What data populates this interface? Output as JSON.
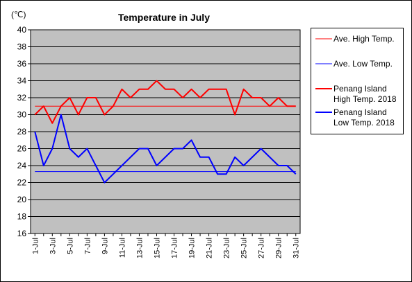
{
  "chart_data": {
    "type": "line",
    "title": "Temperature in July",
    "unit_label": "(℃)",
    "ylim": [
      16,
      40
    ],
    "y_ticks": [
      16,
      18,
      20,
      22,
      24,
      26,
      28,
      30,
      32,
      34,
      36,
      38,
      40
    ],
    "x_days": [
      1,
      2,
      3,
      4,
      5,
      6,
      7,
      8,
      9,
      10,
      11,
      12,
      13,
      14,
      15,
      16,
      17,
      18,
      19,
      20,
      21,
      22,
      23,
      24,
      25,
      26,
      27,
      28,
      29,
      30,
      31
    ],
    "x_tick_labels": [
      "1-Jul",
      "3-Jul",
      "5-Jul",
      "7-Jul",
      "9-Jul",
      "11-Jul",
      "13-Jul",
      "15-Jul",
      "17-Jul",
      "19-Jul",
      "21-Jul",
      "23-Jul",
      "25-Jul",
      "27-Jul",
      "29-Jul",
      "31-Jul"
    ],
    "grid": true,
    "legend_position": "right",
    "series": [
      {
        "name": "Ave. High Temp.",
        "kind": "constant",
        "value": 31.0,
        "color": "#ff0000",
        "weight": "thin"
      },
      {
        "name": "Ave. Low Temp.",
        "kind": "constant",
        "value": 23.3,
        "color": "#0000ff",
        "weight": "thin"
      },
      {
        "name": "Penang Island High Temp. 2018",
        "legend_lines": [
          "Penang Island",
          "High Temp. 2018"
        ],
        "kind": "daily",
        "color": "#ff0000",
        "weight": "bold",
        "values": [
          30,
          31,
          29,
          31,
          32,
          30,
          32,
          32,
          30,
          31,
          33,
          32,
          33,
          33,
          34,
          33,
          33,
          32,
          33,
          32,
          33,
          33,
          33,
          30,
          33,
          32,
          32,
          31,
          32,
          31,
          31
        ]
      },
      {
        "name": "Penang Island Low Temp. 2018",
        "legend_lines": [
          "Penang Island",
          "Low Temp. 2018"
        ],
        "kind": "daily",
        "color": "#0000ff",
        "weight": "bold",
        "values": [
          28,
          24,
          26,
          30,
          26,
          25,
          26,
          24,
          22,
          23,
          24,
          25,
          26,
          26,
          24,
          25,
          26,
          26,
          27,
          25,
          25,
          23,
          23,
          25,
          24,
          25,
          26,
          25,
          24,
          24,
          23
        ]
      }
    ]
  }
}
